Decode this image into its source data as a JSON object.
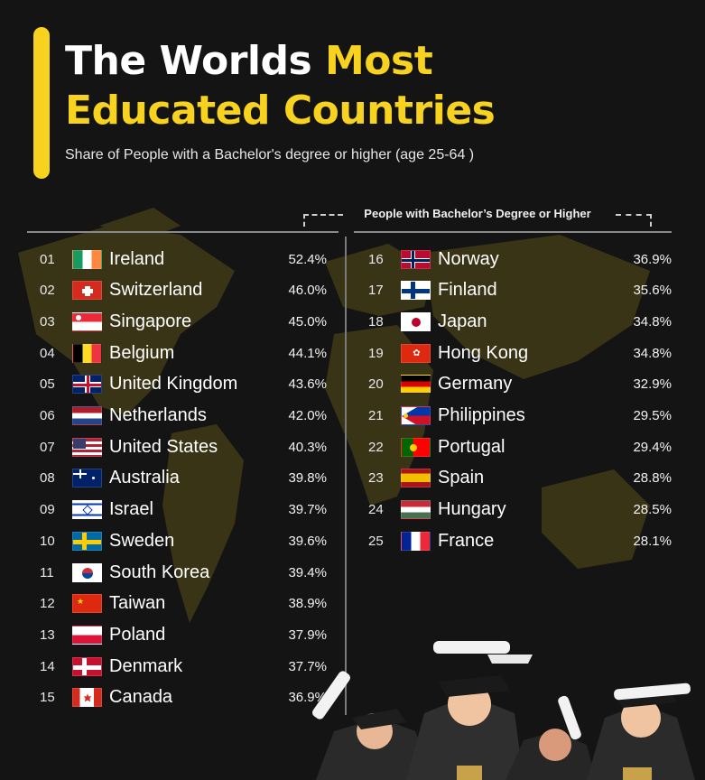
{
  "title": {
    "line1_white": "The Worlds",
    "line1_yellow": "Most",
    "line2_yellow": "Educated Countries"
  },
  "subtitle": "Share of People with a Bachelor's degree or higher (age 25-64 )",
  "column_header": "People with Bachelor’s Degree or Higher",
  "colors": {
    "accent": "#f7d21e",
    "background": "#141414",
    "map": "#3d3618"
  },
  "rows": [
    {
      "rank": "01",
      "country": "Ireland",
      "pct": "52.4%",
      "flag": "ireland-flag-icon"
    },
    {
      "rank": "02",
      "country": "Switzerland",
      "pct": "46.0%",
      "flag": "switzerland-flag-icon"
    },
    {
      "rank": "03",
      "country": "Singapore",
      "pct": "45.0%",
      "flag": "singapore-flag-icon"
    },
    {
      "rank": "04",
      "country": "Belgium",
      "pct": "44.1%",
      "flag": "belgium-flag-icon"
    },
    {
      "rank": "05",
      "country": "United Kingdom",
      "pct": "43.6%",
      "flag": "uk-flag-icon"
    },
    {
      "rank": "06",
      "country": "Netherlands",
      "pct": "42.0%",
      "flag": "netherlands-flag-icon"
    },
    {
      "rank": "07",
      "country": "United States",
      "pct": "40.3%",
      "flag": "usa-flag-icon"
    },
    {
      "rank": "08",
      "country": "Australia",
      "pct": "39.8%",
      "flag": "australia-flag-icon"
    },
    {
      "rank": "09",
      "country": "Israel",
      "pct": "39.7%",
      "flag": "israel-flag-icon"
    },
    {
      "rank": "10",
      "country": "Sweden",
      "pct": "39.6%",
      "flag": "sweden-flag-icon"
    },
    {
      "rank": "11",
      "country": "South Korea",
      "pct": "39.4%",
      "flag": "south-korea-flag-icon"
    },
    {
      "rank": "12",
      "country": "Taiwan",
      "pct": "38.9%",
      "flag": "china-flag-icon"
    },
    {
      "rank": "13",
      "country": "Poland",
      "pct": "37.9%",
      "flag": "poland-flag-icon"
    },
    {
      "rank": "14",
      "country": "Denmark",
      "pct": "37.7%",
      "flag": "denmark-flag-icon"
    },
    {
      "rank": "15",
      "country": "Canada",
      "pct": "36.9%",
      "flag": "canada-flag-icon"
    },
    {
      "rank": "16",
      "country": "Norway",
      "pct": "36.9%",
      "flag": "norway-flag-icon"
    },
    {
      "rank": "17",
      "country": "Finland",
      "pct": "35.6%",
      "flag": "finland-flag-icon"
    },
    {
      "rank": "18",
      "country": "Japan",
      "pct": "34.8%",
      "flag": "japan-flag-icon"
    },
    {
      "rank": "19",
      "country": "Hong Kong",
      "pct": "34.8%",
      "flag": "hong-kong-flag-icon"
    },
    {
      "rank": "20",
      "country": "Germany",
      "pct": "32.9%",
      "flag": "germany-flag-icon"
    },
    {
      "rank": "21",
      "country": "Philippines",
      "pct": "29.5%",
      "flag": "philippines-flag-icon"
    },
    {
      "rank": "22",
      "country": "Portugal",
      "pct": "29.4%",
      "flag": "portugal-flag-icon"
    },
    {
      "rank": "23",
      "country": "Spain",
      "pct": "28.8%",
      "flag": "spain-flag-icon"
    },
    {
      "rank": "24",
      "country": "Hungary",
      "pct": "28.5%",
      "flag": "hungary-flag-icon"
    },
    {
      "rank": "25",
      "country": "France",
      "pct": "28.1%",
      "flag": "france-flag-icon"
    }
  ]
}
